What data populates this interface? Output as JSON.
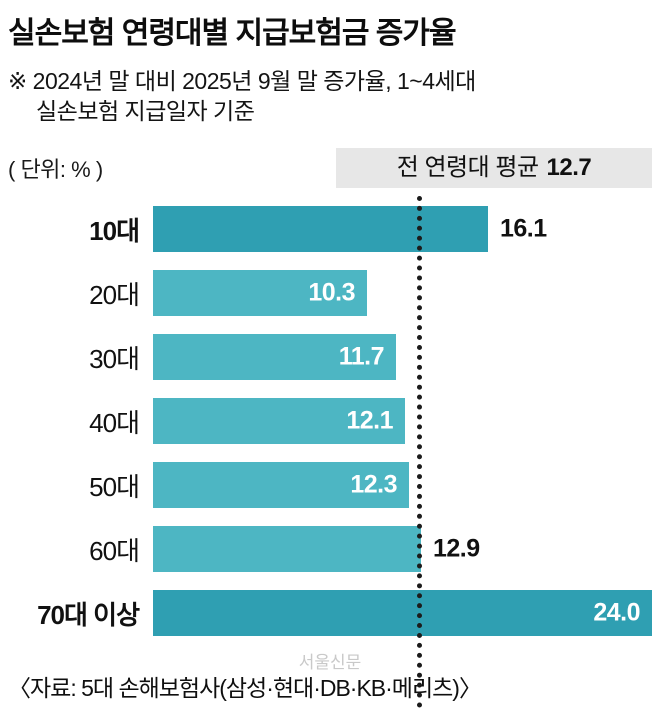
{
  "title": "실손보험 연령대별 지급보험금 증가율",
  "subtitle": {
    "line1": "※ 2024년 말 대비 2025년 9월 말 증가율, 1~4세대",
    "line2": "실손보험 지급일자 기준"
  },
  "unit_label": "( 단위: % )",
  "average": {
    "label": "전 연령대 평균",
    "value": "12.7"
  },
  "source": "〈자료: 5대 손해보험사(삼성·현대·DB·KB·메리츠)〉",
  "watermark": "서울신문",
  "colors": {
    "bar": "#4db6c3",
    "bar_highlight": "#2f9fb2",
    "avg_box_bg": "#e7e7e7",
    "value_inside": "#ffffff",
    "value_outside": "#111111",
    "dotted_line": "#1c1c1c"
  },
  "chart_data": {
    "type": "bar",
    "orientation": "horizontal",
    "title": "실손보험 연령대별 지급보험금 증가율",
    "unit": "%",
    "categories": [
      "10대",
      "20대",
      "30대",
      "40대",
      "50대",
      "60대",
      "70대 이상"
    ],
    "values": [
      16.1,
      10.3,
      11.7,
      12.1,
      12.3,
      12.9,
      24.0
    ],
    "value_labels": [
      "16.1",
      "10.3",
      "11.7",
      "12.1",
      "12.3",
      "12.9",
      "24.0"
    ],
    "average": 12.7,
    "highlighted_categories": [
      "10대",
      "70대 이상"
    ],
    "value_label_inside": [
      false,
      true,
      true,
      true,
      true,
      false,
      true
    ],
    "xlim": [
      0,
      24
    ],
    "axis_visible": false,
    "grid": false,
    "legend": false
  }
}
